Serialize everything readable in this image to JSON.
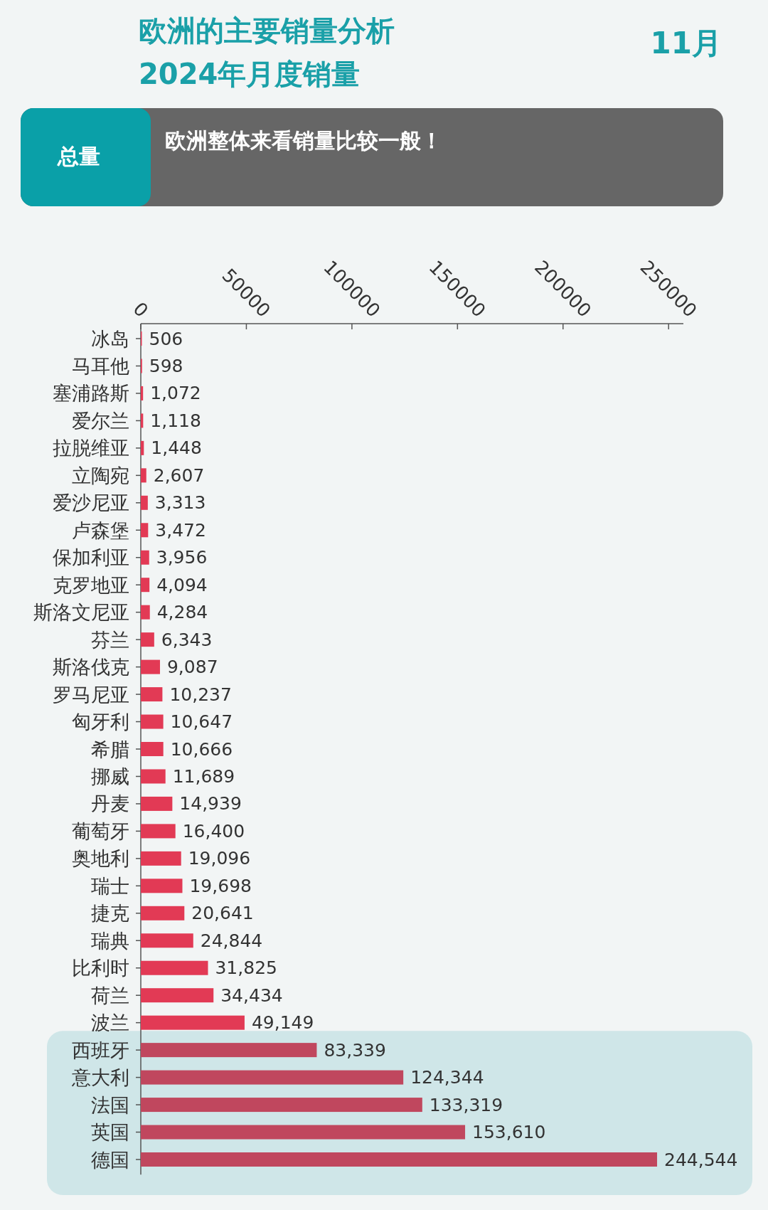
{
  "chart_data": [
    {
      "type": "bar",
      "orientation": "horizontal",
      "title": "欧洲的主要销量分析",
      "subtitle": "2024年月度销量",
      "annotations": [
        "11月"
      ],
      "categories": [
        "冰岛",
        "马耳他",
        "塞浦路斯",
        "爱尔兰",
        "拉脱维亚",
        "立陶宛",
        "爱沙尼亚",
        "卢森堡",
        "保加利亚",
        "克罗地亚",
        "斯洛文尼亚",
        "芬兰",
        "斯洛伐克",
        "罗马尼亚",
        "匈牙利",
        "希腊",
        "挪威",
        "丹麦",
        "葡萄牙",
        "奥地利",
        "瑞士",
        "捷克",
        "瑞典",
        "比利时",
        "荷兰",
        "波兰",
        "西班牙",
        "意大利",
        "法国",
        "英国",
        "德国"
      ],
      "values": [
        506,
        598,
        1072,
        1118,
        1448,
        2607,
        3313,
        3472,
        3956,
        4094,
        4284,
        6343,
        9087,
        10237,
        10647,
        10666,
        11689,
        14939,
        16400,
        19096,
        19698,
        20641,
        24844,
        31825,
        34434,
        49149,
        83339,
        124344,
        133319,
        153610,
        244544
      ],
      "value_labels": [
        "506",
        "598",
        "1,072",
        "1,118",
        "1,448",
        "2,607",
        "3,313",
        "3,472",
        "3,956",
        "4,094",
        "4,284",
        "6,343",
        "9,087",
        "10,237",
        "10,647",
        "10,666",
        "11,689",
        "14,939",
        "16,400",
        "19,096",
        "19,698",
        "20,641",
        "24,844",
        "31,825",
        "34,434",
        "49,149",
        "83,339",
        "124,344",
        "133,319",
        "153,610",
        "244,544"
      ],
      "colors": [
        "#e23a55",
        "#e23a55",
        "#e23a55",
        "#e23a55",
        "#e23a55",
        "#e23a55",
        "#e23a55",
        "#e23a55",
        "#e23a55",
        "#e23a55",
        "#e23a55",
        "#e23a55",
        "#e23a55",
        "#e23a55",
        "#e23a55",
        "#e23a55",
        "#e23a55",
        "#e23a55",
        "#e23a55",
        "#e23a55",
        "#e23a55",
        "#e23a55",
        "#e23a55",
        "#e23a55",
        "#e23a55",
        "#e23a55",
        "#c0475e",
        "#c0475e",
        "#c0475e",
        "#c0475e",
        "#c0475e"
      ],
      "xlim": [
        0,
        257000
      ],
      "xticks": [
        0,
        50000,
        100000,
        150000,
        200000,
        250000
      ]
    },
    {
      "type": "other",
      "title": "总量",
      "annotations": [
        "欧洲整体来看销量比较一般！"
      ]
    }
  ]
}
